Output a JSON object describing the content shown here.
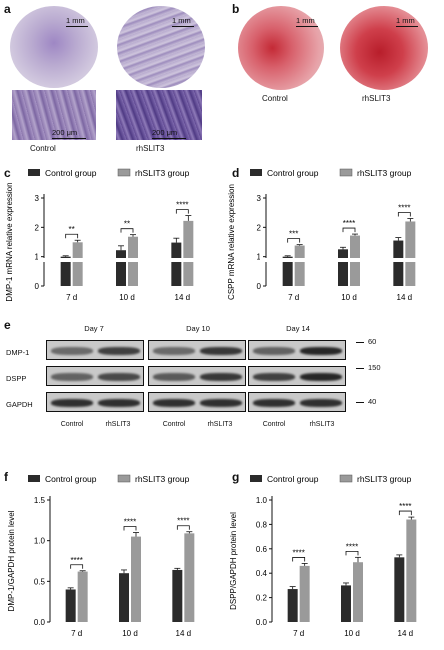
{
  "panels": {
    "a": "a",
    "b": "b",
    "c": "c",
    "d": "d",
    "e": "e",
    "f": "f",
    "g": "g"
  },
  "images": {
    "a": {
      "top": [
        {
          "label": "Control",
          "scale": "1 mm",
          "color": "#b7a9c9"
        },
        {
          "label": "rhSLIT3",
          "scale": "1 mm",
          "color": "#a89bc0"
        }
      ],
      "bottom": [
        {
          "scale": "200 μm",
          "color": "#8e7ab0"
        },
        {
          "scale": "200 μm",
          "color": "#6e5a9c"
        }
      ]
    },
    "b": {
      "top": [
        {
          "label": "Control",
          "scale": "1 mm",
          "color": "#d9707a"
        },
        {
          "label": "rhSLIT3",
          "scale": "1 mm",
          "color": "#d7525d"
        }
      ]
    }
  },
  "legend": {
    "control": "Control group",
    "treated": "rhSLIT3 group"
  },
  "colors": {
    "control_bar": "#2b2b2b",
    "treated_bar": "#9a9a9a"
  },
  "chart_data": [
    {
      "id": "c",
      "type": "bar",
      "ylabel": "DMP-1 mRNA relative expression",
      "categories": [
        "7 d",
        "10 d",
        "14 d"
      ],
      "series": [
        {
          "name": "Control group",
          "values": [
            1.0,
            1.22,
            1.48
          ],
          "errors": [
            0.03,
            0.15,
            0.15
          ]
        },
        {
          "name": "rhSLIT3 group",
          "values": [
            1.49,
            1.68,
            2.22
          ],
          "errors": [
            0.07,
            0.07,
            0.18
          ]
        }
      ],
      "significance": [
        "**",
        "**",
        "****"
      ],
      "ylim": [
        0,
        3
      ],
      "yticks": [
        "0",
        "1",
        "2",
        "3"
      ],
      "axis_break": true
    },
    {
      "id": "d",
      "type": "bar",
      "ylabel": "CSPP mRNA relative expression",
      "categories": [
        "7 d",
        "10 d",
        "14 d"
      ],
      "series": [
        {
          "name": "Control group",
          "values": [
            1.0,
            1.25,
            1.55
          ],
          "errors": [
            0.03,
            0.07,
            0.1
          ]
        },
        {
          "name": "rhSLIT3 group",
          "values": [
            1.38,
            1.72,
            2.2
          ],
          "errors": [
            0.03,
            0.05,
            0.1
          ]
        }
      ],
      "significance": [
        "***",
        "****",
        "****"
      ],
      "ylim": [
        0,
        3
      ],
      "yticks": [
        "0",
        "1",
        "2",
        "3"
      ],
      "axis_break": true
    },
    {
      "id": "f",
      "type": "bar",
      "ylabel": "DMP-1/GAPDH protein level",
      "categories": [
        "7 d",
        "10 d",
        "14 d"
      ],
      "series": [
        {
          "name": "Control group",
          "values": [
            0.4,
            0.6,
            0.64
          ],
          "errors": [
            0.02,
            0.04,
            0.02
          ]
        },
        {
          "name": "rhSLIT3 group",
          "values": [
            0.62,
            1.05,
            1.09
          ],
          "errors": [
            0.01,
            0.05,
            0.02
          ]
        }
      ],
      "significance": [
        "****",
        "****",
        "****"
      ],
      "ylim": [
        0,
        1.5
      ],
      "yticks": [
        "0.0",
        "0.5",
        "1.0",
        "1.5"
      ]
    },
    {
      "id": "g",
      "type": "bar",
      "ylabel": "DSPP/GAPDH protein level",
      "categories": [
        "7 d",
        "10 d",
        "14 d"
      ],
      "series": [
        {
          "name": "Control group",
          "values": [
            0.27,
            0.3,
            0.53
          ],
          "errors": [
            0.02,
            0.02,
            0.02
          ]
        },
        {
          "name": "rhSLIT3 group",
          "values": [
            0.46,
            0.49,
            0.84
          ],
          "errors": [
            0.02,
            0.04,
            0.02
          ]
        }
      ],
      "significance": [
        "****",
        "****",
        "****"
      ],
      "ylim": [
        0,
        1.0
      ],
      "yticks": [
        "0.0",
        "0.2",
        "0.4",
        "0.6",
        "0.8",
        "1.0"
      ]
    }
  ],
  "blot": {
    "days": [
      "Day 7",
      "Day 10",
      "Day 14"
    ],
    "rows": [
      "DMP-1",
      "DSPP",
      "GAPDH"
    ],
    "kda": [
      "60",
      "150",
      "40"
    ],
    "conditions": [
      "Control",
      "rhSLIT3"
    ],
    "band_intensity": [
      [
        [
          0.55,
          0.8
        ],
        [
          0.55,
          0.85
        ],
        [
          0.6,
          0.95
        ]
      ],
      [
        [
          0.6,
          0.75
        ],
        [
          0.65,
          0.85
        ],
        [
          0.8,
          0.95
        ]
      ],
      [
        [
          0.9,
          0.9
        ],
        [
          0.9,
          0.9
        ],
        [
          0.9,
          0.9
        ]
      ]
    ]
  }
}
